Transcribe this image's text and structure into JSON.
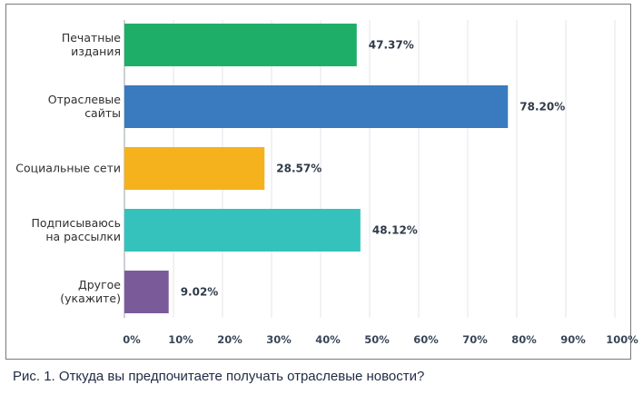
{
  "caption": "Рис. 1. Откуда вы предпочитаете получать отраслевые новости?",
  "chart_data": {
    "type": "bar",
    "orientation": "horizontal",
    "categories": [
      [
        "Печатные",
        "издания"
      ],
      [
        "Отраслевые",
        "сайты"
      ],
      [
        "Социальные сети"
      ],
      [
        "Подписываюсь",
        "на рассылки"
      ],
      [
        "Другое",
        "(укажите)"
      ]
    ],
    "values": [
      47.37,
      78.2,
      28.57,
      48.12,
      9.02
    ],
    "value_labels": [
      "47.37%",
      "78.20%",
      "28.57%",
      "48.12%",
      "9.02%"
    ],
    "colors": [
      "#1fae67",
      "#3a7bbf",
      "#f6b21c",
      "#35c2bd",
      "#7b5a9a"
    ],
    "xlim": [
      0,
      100
    ],
    "xticks": [
      "0%",
      "10%",
      "20%",
      "30%",
      "40%",
      "50%",
      "60%",
      "70%",
      "80%",
      "90%",
      "100%"
    ],
    "grid": true
  }
}
